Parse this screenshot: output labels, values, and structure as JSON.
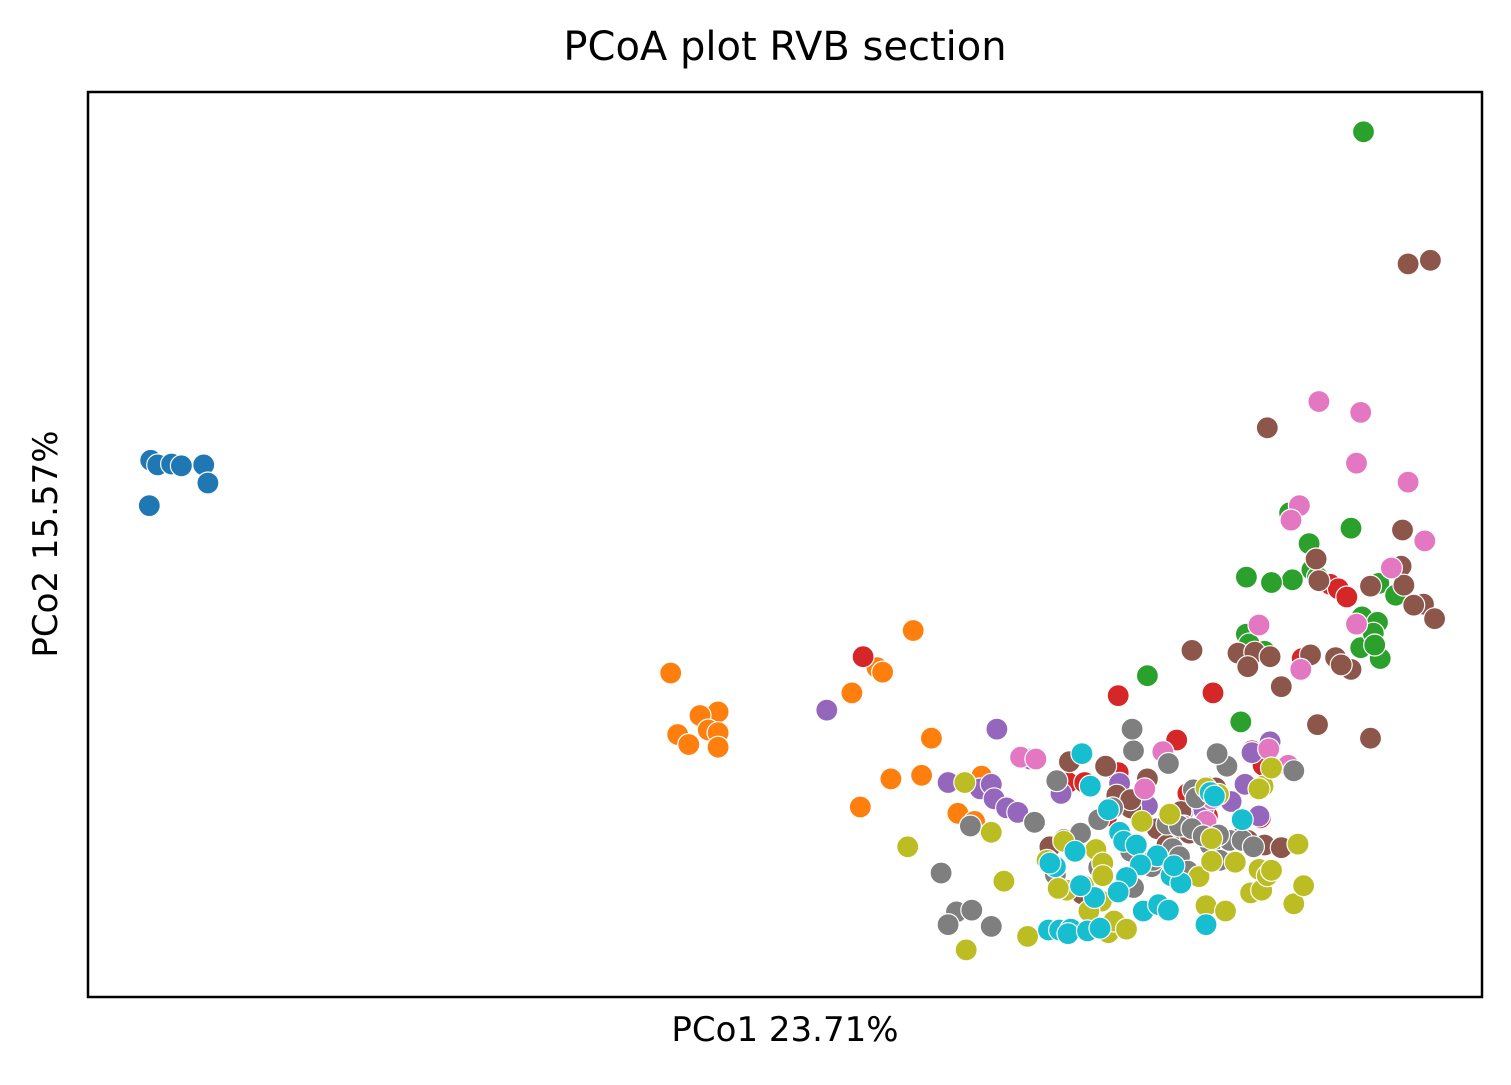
{
  "chart_data": {
    "type": "scatter",
    "title": "PCoA plot RVB section",
    "xlabel": "PCo1 23.71%",
    "ylabel": "PCo2 15.57%",
    "xlim": [
      0,
      100
    ],
    "ylim": [
      0,
      100
    ],
    "ticks_shown": false,
    "grid": false,
    "legend": "none",
    "series": [
      {
        "color": "#1f77b4",
        "points": [
          [
            4.5,
            59.3
          ],
          [
            5.0,
            58.8
          ],
          [
            6.0,
            58.9
          ],
          [
            6.7,
            58.7
          ],
          [
            8.3,
            58.8
          ],
          [
            8.6,
            56.8
          ],
          [
            4.4,
            54.3
          ]
        ]
      },
      {
        "color": "#ff7f0e",
        "points": [
          [
            59.2,
            40.5
          ],
          [
            56.6,
            36.4
          ],
          [
            57.0,
            35.9
          ],
          [
            41.8,
            35.8
          ],
          [
            54.8,
            33.6
          ],
          [
            45.2,
            31.5
          ],
          [
            43.9,
            31.1
          ],
          [
            44.5,
            29.5
          ],
          [
            45.2,
            29.2
          ],
          [
            42.3,
            29.0
          ],
          [
            43.1,
            27.9
          ],
          [
            45.2,
            27.6
          ],
          [
            60.5,
            28.6
          ],
          [
            57.6,
            24.1
          ],
          [
            59.8,
            24.5
          ],
          [
            64.1,
            24.4
          ],
          [
            76.0,
            24.0
          ],
          [
            55.4,
            21.0
          ],
          [
            62.4,
            20.3
          ],
          [
            63.6,
            19.4
          ]
        ]
      },
      {
        "color": "#2ca02c",
        "points": [
          [
            91.5,
            95.6
          ],
          [
            86.2,
            53.5
          ],
          [
            87.6,
            50.1
          ],
          [
            87.8,
            47.2
          ],
          [
            88.2,
            46.4
          ],
          [
            90.6,
            51.8
          ],
          [
            92.6,
            45.7
          ],
          [
            93.8,
            44.4
          ],
          [
            83.1,
            46.4
          ],
          [
            86.4,
            46.1
          ],
          [
            84.9,
            45.8
          ],
          [
            91.4,
            42.0
          ],
          [
            92.5,
            41.4
          ],
          [
            92.7,
            37.4
          ],
          [
            91.3,
            38.6
          ],
          [
            92.2,
            40.2
          ],
          [
            83.1,
            40.1
          ],
          [
            83.3,
            39.0
          ],
          [
            84.4,
            38.2
          ],
          [
            76.0,
            35.5
          ],
          [
            82.7,
            30.4
          ],
          [
            92.3,
            38.9
          ]
        ]
      },
      {
        "color": "#d62728",
        "points": [
          [
            55.6,
            37.6
          ],
          [
            73.9,
            33.3
          ],
          [
            80.7,
            33.6
          ],
          [
            78.1,
            28.4
          ],
          [
            83.5,
            27.2
          ],
          [
            84.3,
            25.6
          ],
          [
            73.9,
            24.8
          ],
          [
            70.3,
            23.7
          ],
          [
            71.5,
            23.7
          ],
          [
            78.9,
            22.5
          ],
          [
            73.1,
            20.0
          ],
          [
            80.3,
            20.0
          ],
          [
            84.1,
            19.8
          ],
          [
            87.1,
            37.4
          ],
          [
            89.1,
            45.6
          ],
          [
            89.7,
            45.1
          ],
          [
            90.3,
            44.2
          ]
        ]
      },
      {
        "color": "#9467bd",
        "points": [
          [
            53.0,
            31.7
          ],
          [
            65.2,
            29.6
          ],
          [
            67.6,
            26.3
          ],
          [
            61.7,
            23.7
          ],
          [
            64.0,
            23.0
          ],
          [
            64.8,
            23.5
          ],
          [
            65.0,
            21.9
          ],
          [
            65.9,
            20.9
          ],
          [
            66.7,
            20.4
          ],
          [
            69.8,
            22.5
          ],
          [
            74.0,
            23.6
          ],
          [
            76.0,
            21.1
          ],
          [
            80.0,
            20.8
          ],
          [
            82.0,
            21.6
          ],
          [
            83.0,
            23.5
          ],
          [
            84.0,
            20.0
          ],
          [
            83.5,
            27.0
          ],
          [
            84.8,
            28.2
          ],
          [
            78.5,
            20.3
          ]
        ]
      },
      {
        "color": "#8c564b",
        "points": [
          [
            94.7,
            81.0
          ],
          [
            96.3,
            81.4
          ],
          [
            84.6,
            62.9
          ],
          [
            94.3,
            51.6
          ],
          [
            94.2,
            47.6
          ],
          [
            92.0,
            45.4
          ],
          [
            94.4,
            45.5
          ],
          [
            95.8,
            43.4
          ],
          [
            96.6,
            41.8
          ],
          [
            95.1,
            43.3
          ],
          [
            79.2,
            38.3
          ],
          [
            82.5,
            38.0
          ],
          [
            83.7,
            38.1
          ],
          [
            83.2,
            36.5
          ],
          [
            84.8,
            37.6
          ],
          [
            85.6,
            34.3
          ],
          [
            88.2,
            30.1
          ],
          [
            92.0,
            28.6
          ],
          [
            70.4,
            26.0
          ],
          [
            73.0,
            25.5
          ],
          [
            73.8,
            22.3
          ],
          [
            74.8,
            20.9
          ],
          [
            76.7,
            18.6
          ],
          [
            77.8,
            18.3
          ],
          [
            79.0,
            18.1
          ],
          [
            80.5,
            17.8
          ],
          [
            82.6,
            17.5
          ],
          [
            83.2,
            17.3
          ],
          [
            84.4,
            16.8
          ],
          [
            85.6,
            16.5
          ],
          [
            69.0,
            16.6
          ],
          [
            74.8,
            21.8
          ],
          [
            78.4,
            20.5
          ],
          [
            77.4,
            16.8
          ],
          [
            71.3,
            11.4
          ],
          [
            80.4,
            23.2
          ],
          [
            80.9,
            23.1
          ],
          [
            87.7,
            37.8
          ],
          [
            89.5,
            37.5
          ],
          [
            90.6,
            36.2
          ],
          [
            89.9,
            36.7
          ],
          [
            76.0,
            24.1
          ],
          [
            88.1,
            48.4
          ],
          [
            88.3,
            46.0
          ]
        ]
      },
      {
        "color": "#e377c2",
        "points": [
          [
            88.3,
            65.8
          ],
          [
            91.3,
            64.6
          ],
          [
            91.0,
            59.0
          ],
          [
            94.7,
            56.9
          ],
          [
            86.9,
            54.3
          ],
          [
            86.3,
            52.7
          ],
          [
            95.9,
            50.4
          ],
          [
            93.5,
            47.4
          ],
          [
            91.0,
            41.2
          ],
          [
            87.0,
            36.2
          ],
          [
            84.0,
            41.1
          ],
          [
            66.9,
            26.5
          ],
          [
            68.0,
            26.3
          ],
          [
            77.1,
            27.1
          ],
          [
            75.8,
            23.0
          ],
          [
            77.6,
            20.1
          ],
          [
            78.6,
            18.9
          ],
          [
            80.2,
            19.4
          ],
          [
            80.6,
            21.9
          ],
          [
            84.7,
            27.4
          ],
          [
            86.1,
            25.6
          ]
        ]
      },
      {
        "color": "#7f7f7f",
        "points": [
          [
            67.9,
            19.3
          ],
          [
            63.3,
            18.9
          ],
          [
            61.2,
            13.7
          ],
          [
            62.3,
            9.4
          ],
          [
            63.4,
            9.6
          ],
          [
            64.8,
            7.8
          ],
          [
            69.4,
            13.5
          ],
          [
            70.0,
            17.4
          ],
          [
            72.5,
            14.3
          ],
          [
            74.8,
            16.1
          ],
          [
            77.4,
            19.1
          ],
          [
            78.3,
            18.9
          ],
          [
            79.2,
            18.6
          ],
          [
            80.5,
            16.8
          ],
          [
            81.2,
            15.1
          ],
          [
            81.9,
            17.3
          ],
          [
            82.8,
            17.3
          ],
          [
            83.6,
            16.6
          ],
          [
            80.0,
            17.8
          ],
          [
            77.8,
            16.4
          ],
          [
            74.1,
            11.9
          ],
          [
            76.3,
            14.4
          ],
          [
            71.2,
            18.1
          ],
          [
            72.5,
            19.6
          ],
          [
            79.3,
            22.9
          ],
          [
            81.7,
            25.5
          ],
          [
            86.5,
            25.0
          ],
          [
            81.0,
            26.9
          ],
          [
            69.5,
            23.9
          ],
          [
            75.0,
            27.2
          ],
          [
            74.9,
            29.6
          ],
          [
            81.1,
            17.9
          ],
          [
            78.3,
            15.5
          ],
          [
            78.9,
            13.9
          ],
          [
            76.4,
            15.1
          ],
          [
            61.7,
            8.0
          ],
          [
            75.0,
            12.1
          ],
          [
            77.5,
            25.8
          ],
          [
            73.5,
            20.9
          ],
          [
            79.5,
            22.0
          ]
        ]
      },
      {
        "color": "#bcbd22",
        "points": [
          [
            62.9,
            23.7
          ],
          [
            70.0,
            17.2
          ],
          [
            68.8,
            15.1
          ],
          [
            58.8,
            16.6
          ],
          [
            64.8,
            18.2
          ],
          [
            63.0,
            5.2
          ],
          [
            67.4,
            6.7
          ],
          [
            70.2,
            11.8
          ],
          [
            72.7,
            10.6
          ],
          [
            71.6,
            7.3
          ],
          [
            71.8,
            9.5
          ],
          [
            71.4,
            12.3
          ],
          [
            73.2,
            7.1
          ],
          [
            73.6,
            8.4
          ],
          [
            74.5,
            7.5
          ],
          [
            75.6,
            19.4
          ],
          [
            72.3,
            16.3
          ],
          [
            72.8,
            14.8
          ],
          [
            80.2,
            10.1
          ],
          [
            77.6,
            20.2
          ],
          [
            79.7,
            13.3
          ],
          [
            80.6,
            17.5
          ],
          [
            81.6,
            9.5
          ],
          [
            83.4,
            11.5
          ],
          [
            84.2,
            11.8
          ],
          [
            86.5,
            10.3
          ],
          [
            87.2,
            12.3
          ],
          [
            84.0,
            14.1
          ],
          [
            84.6,
            13.4
          ],
          [
            84.9,
            14.0
          ],
          [
            82.3,
            14.9
          ],
          [
            80.6,
            15.0
          ],
          [
            80.2,
            23.1
          ],
          [
            81.1,
            22.4
          ],
          [
            84.3,
            23.3
          ],
          [
            84.0,
            23.0
          ],
          [
            84.9,
            25.3
          ],
          [
            86.8,
            16.9
          ],
          [
            65.7,
            12.8
          ],
          [
            69.6,
            12.0
          ],
          [
            72.8,
            13.4
          ]
        ]
      },
      {
        "color": "#17becf",
        "points": [
          [
            71.3,
            26.9
          ],
          [
            71.9,
            23.3
          ],
          [
            73.2,
            20.7
          ],
          [
            74.0,
            18.2
          ],
          [
            74.3,
            17.2
          ],
          [
            75.2,
            16.8
          ],
          [
            76.7,
            15.6
          ],
          [
            77.7,
            13.4
          ],
          [
            78.4,
            12.6
          ],
          [
            75.5,
            14.6
          ],
          [
            77.9,
            14.5
          ],
          [
            74.5,
            13.2
          ],
          [
            73.9,
            11.6
          ],
          [
            72.2,
            11.0
          ],
          [
            71.2,
            12.3
          ],
          [
            69.4,
            14.4
          ],
          [
            69.0,
            14.8
          ],
          [
            70.8,
            16.1
          ],
          [
            68.9,
            7.4
          ],
          [
            69.7,
            7.4
          ],
          [
            70.5,
            7.5
          ],
          [
            70.3,
            7.0
          ],
          [
            71.7,
            7.3
          ],
          [
            72.6,
            7.6
          ],
          [
            80.2,
            8.0
          ],
          [
            75.7,
            9.5
          ],
          [
            76.8,
            10.2
          ],
          [
            77.5,
            9.6
          ],
          [
            80.5,
            22.6
          ],
          [
            80.8,
            22.2
          ],
          [
            82.8,
            19.6
          ]
        ]
      }
    ]
  }
}
